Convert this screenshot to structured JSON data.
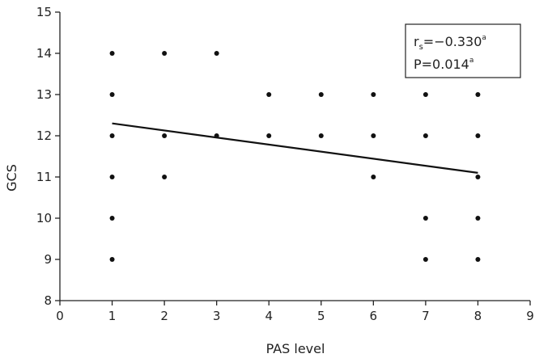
{
  "chart_data": {
    "type": "scatter",
    "xlabel": "PAS level",
    "ylabel": "GCS",
    "xlim": [
      0,
      9
    ],
    "ylim": [
      8,
      15
    ],
    "xticks": [
      0,
      1,
      2,
      3,
      4,
      5,
      6,
      7,
      8,
      9
    ],
    "yticks": [
      8,
      9,
      10,
      11,
      12,
      13,
      14,
      15
    ],
    "grid": false,
    "points": [
      {
        "x": 1,
        "y": 14
      },
      {
        "x": 1,
        "y": 13
      },
      {
        "x": 1,
        "y": 12
      },
      {
        "x": 1,
        "y": 11
      },
      {
        "x": 1,
        "y": 10
      },
      {
        "x": 1,
        "y": 9
      },
      {
        "x": 2,
        "y": 14
      },
      {
        "x": 2,
        "y": 12
      },
      {
        "x": 2,
        "y": 11
      },
      {
        "x": 3,
        "y": 14
      },
      {
        "x": 3,
        "y": 12
      },
      {
        "x": 4,
        "y": 13
      },
      {
        "x": 4,
        "y": 12
      },
      {
        "x": 5,
        "y": 13
      },
      {
        "x": 5,
        "y": 12
      },
      {
        "x": 6,
        "y": 13
      },
      {
        "x": 6,
        "y": 12
      },
      {
        "x": 6,
        "y": 11
      },
      {
        "x": 7,
        "y": 13
      },
      {
        "x": 7,
        "y": 12
      },
      {
        "x": 7,
        "y": 10
      },
      {
        "x": 7,
        "y": 9
      },
      {
        "x": 8,
        "y": 13
      },
      {
        "x": 8,
        "y": 12
      },
      {
        "x": 8,
        "y": 11
      },
      {
        "x": 8,
        "y": 10
      },
      {
        "x": 8,
        "y": 9
      }
    ],
    "trendline": {
      "x": [
        1,
        8
      ],
      "y": [
        12.3,
        11.1
      ]
    },
    "annotation": {
      "r_base": "r",
      "r_sub": "s",
      "r_value": "=−0.330",
      "r_sup": "a",
      "p_text": "P=0.014",
      "p_sup": "a",
      "position": "top-right"
    }
  }
}
